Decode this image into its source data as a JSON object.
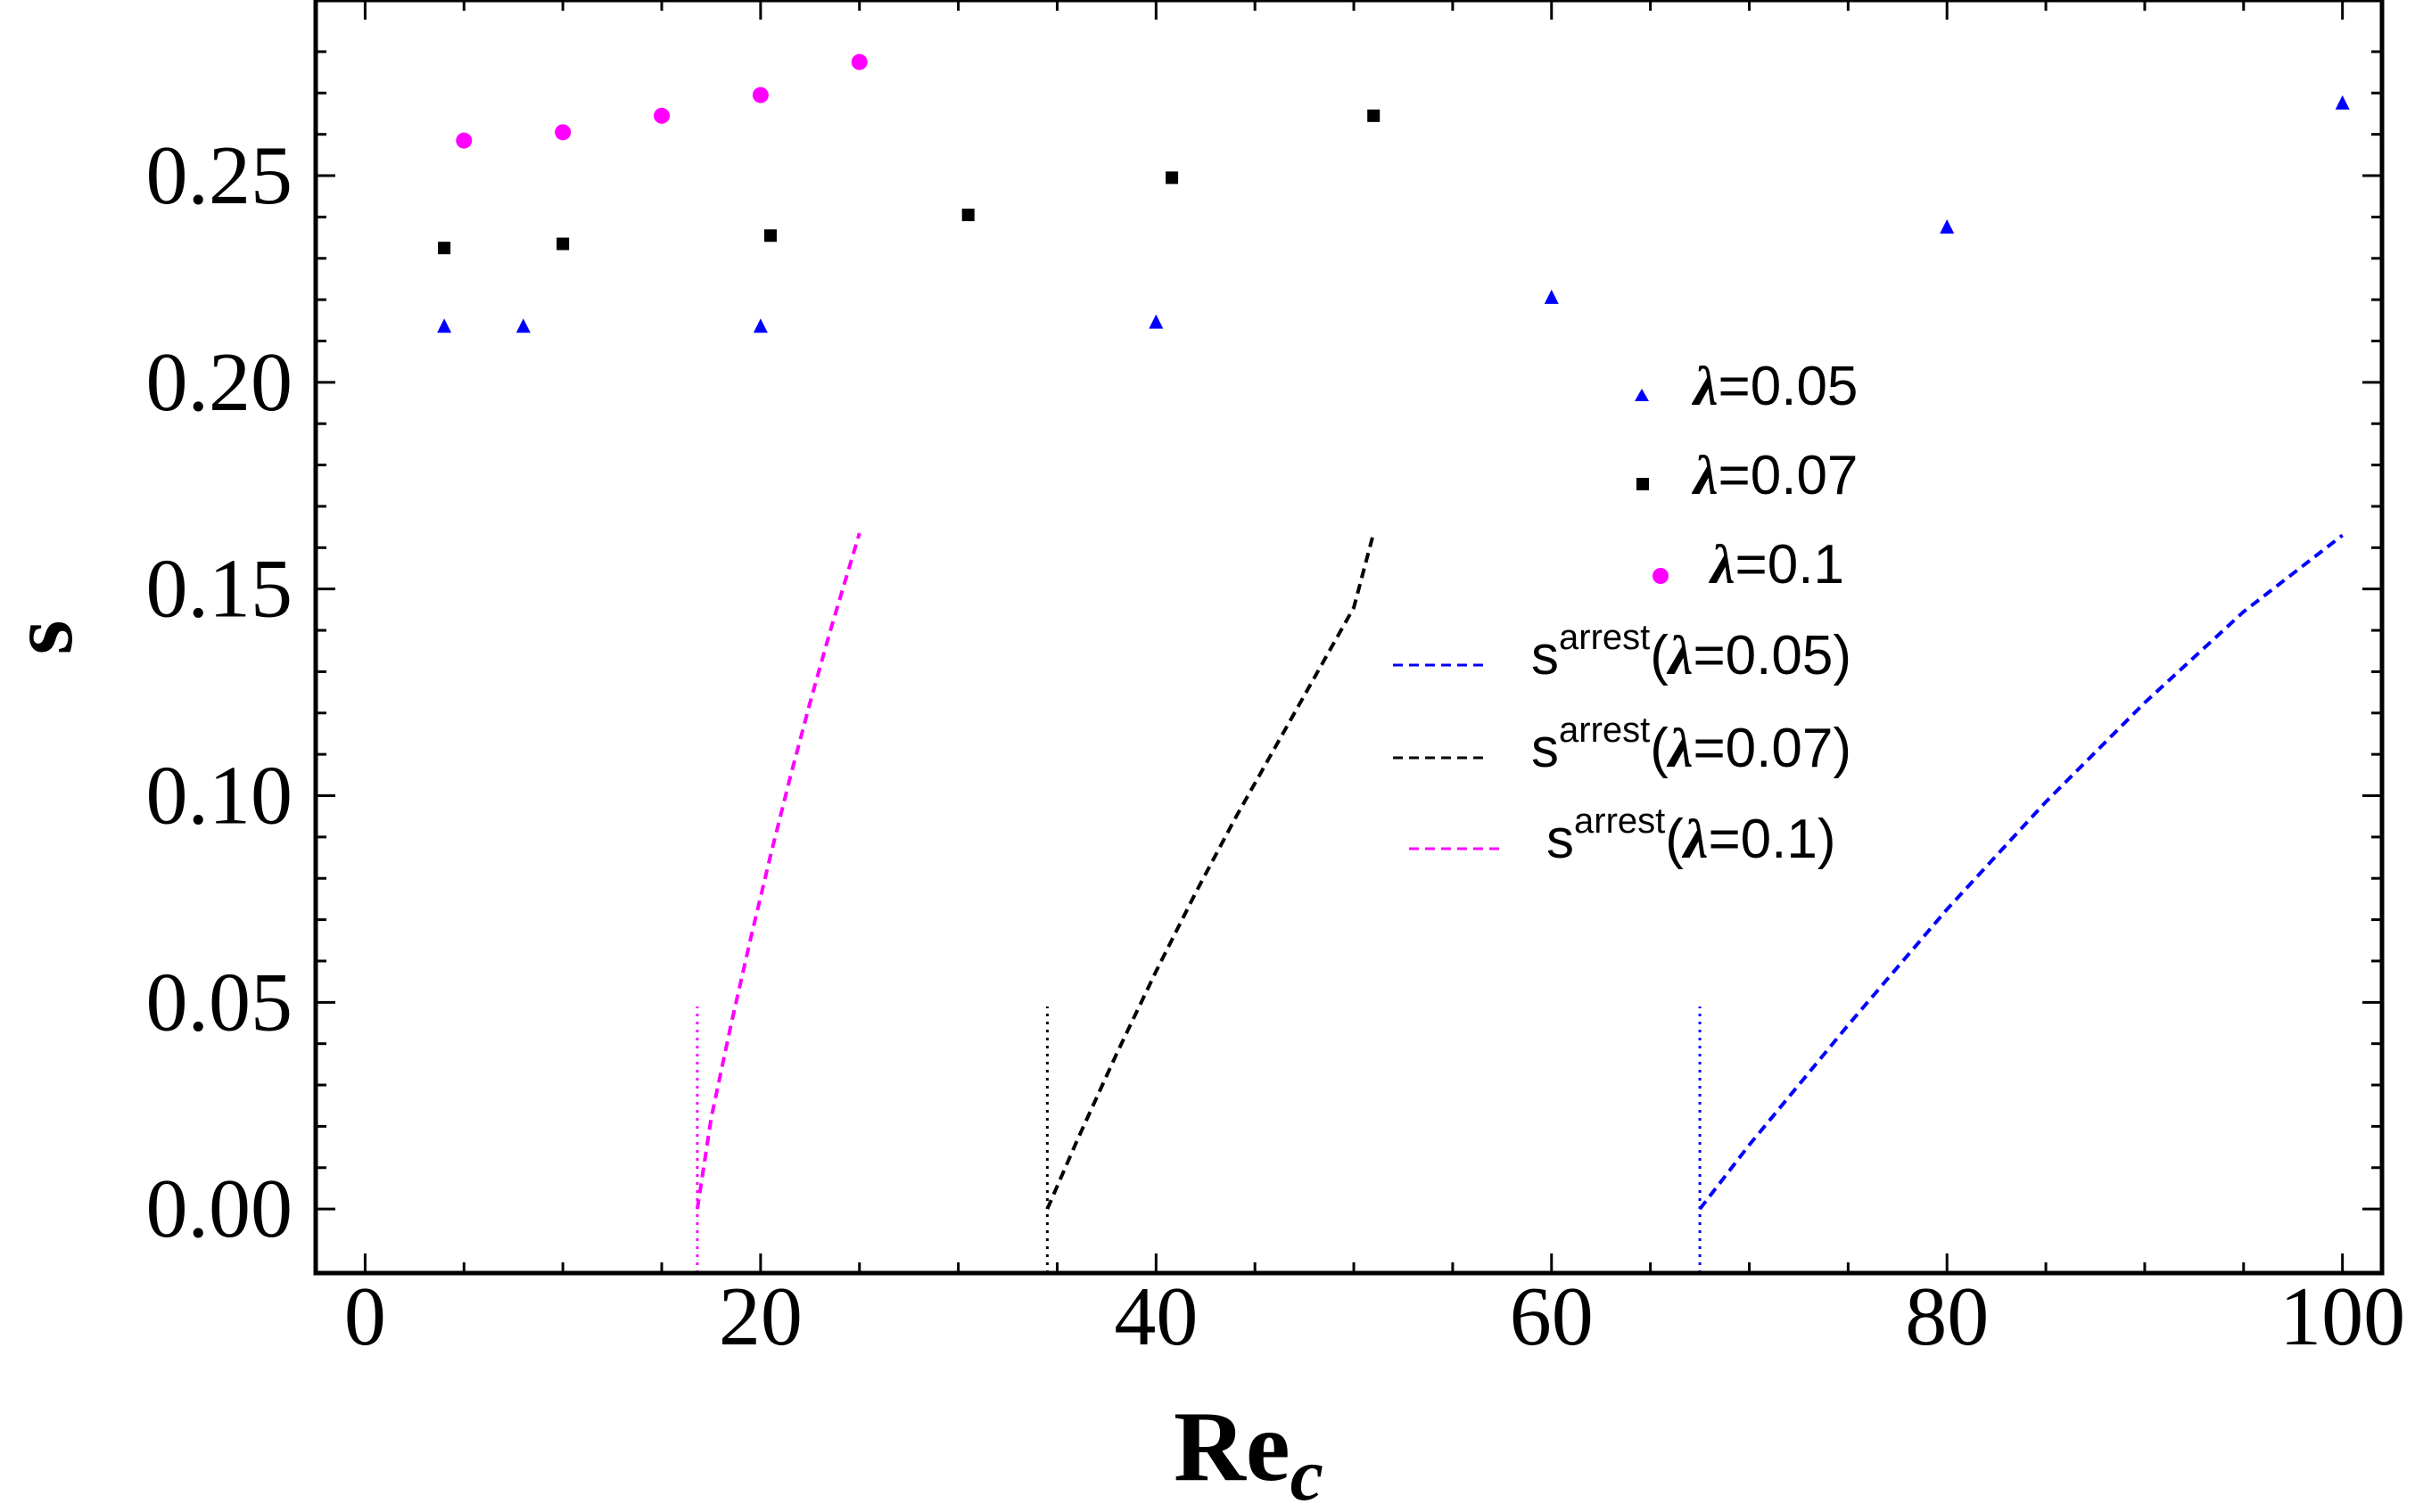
{
  "chart_data": {
    "type": "scatter",
    "title": "",
    "xlabel": "Re",
    "xlabel_subscript": "c",
    "ylabel": "s",
    "xlim": [
      -2.5,
      102
    ],
    "ylim": [
      -0.0155,
      0.2925
    ],
    "x_ticks": [
      0,
      20,
      40,
      60,
      80,
      100
    ],
    "x_tick_labels": [
      "0",
      "20",
      "40",
      "60",
      "80",
      "100"
    ],
    "y_ticks": [
      0.0,
      0.05,
      0.1,
      0.15,
      0.2,
      0.25
    ],
    "y_tick_labels": [
      "0.00",
      "0.05",
      "0.10",
      "0.15",
      "0.20",
      "0.25"
    ],
    "legend_position": "center-right",
    "series": [
      {
        "name": "λ=0.05",
        "lambda_symbol": "λ",
        "legend_value": "=0.05",
        "kind": "points",
        "marker": "triangle",
        "color": "#0000ff",
        "x": [
          4,
          8,
          20,
          40,
          60,
          80,
          100
        ],
        "y": [
          0.2135,
          0.2135,
          0.2135,
          0.2145,
          0.2205,
          0.2375,
          0.2675
        ]
      },
      {
        "name": "λ=0.07",
        "lambda_symbol": "λ",
        "legend_value": "=0.07",
        "kind": "points",
        "marker": "square",
        "color": "#000000",
        "x": [
          4,
          10,
          20.5,
          30.5,
          40.8,
          51
        ],
        "y": [
          0.2325,
          0.2335,
          0.2355,
          0.2405,
          0.2495,
          0.2645
        ]
      },
      {
        "name": "λ=0.1",
        "lambda_symbol": "λ",
        "legend_value": "=0.1",
        "kind": "points",
        "marker": "circle",
        "color": "#ff00ff",
        "x": [
          5,
          10,
          15,
          20,
          25
        ],
        "y": [
          0.2585,
          0.2605,
          0.2645,
          0.2695,
          0.2775
        ]
      },
      {
        "name": "s^arrest(λ=0.05)",
        "label_base": "s",
        "label_sup": "arrest",
        "label_open": "(",
        "lambda_symbol": "λ",
        "label_value": "=0.05)",
        "kind": "dashed-line",
        "color": "#0000ff",
        "x": [
          67.5,
          70,
          75,
          80,
          85,
          90,
          95,
          100
        ],
        "y": [
          0.0,
          0.0155,
          0.0445,
          0.0725,
          0.0985,
          0.1225,
          0.1445,
          0.163
        ]
      },
      {
        "name": "s^arrest(λ=0.07)",
        "label_base": "s",
        "label_sup": "arrest",
        "label_open": "(",
        "lambda_symbol": "λ",
        "label_value": "=0.07)",
        "kind": "dashed-line",
        "color": "#000000",
        "x": [
          34.5,
          36,
          38,
          40,
          42,
          44,
          46,
          48,
          50,
          51
        ],
        "y": [
          0.0,
          0.0165,
          0.0375,
          0.0575,
          0.0765,
          0.0945,
          0.1115,
          0.1285,
          0.1455,
          0.1635
        ]
      },
      {
        "name": "s^arrest(λ=0.1)",
        "label_base": "s",
        "label_sup": "arrest",
        "label_open": "(",
        "lambda_symbol": "λ",
        "label_value": "=0.1)",
        "kind": "dashed-line",
        "color": "#ff00ff",
        "x": [
          16.8,
          17.5,
          18.5,
          19.5,
          20.5,
          21.5,
          22.5,
          23.5,
          24.5,
          25
        ],
        "y": [
          0.0,
          0.022,
          0.0445,
          0.0655,
          0.0855,
          0.1045,
          0.1225,
          0.1395,
          0.1555,
          0.1635
        ]
      }
    ],
    "reference_lines": [
      {
        "x": 16.8,
        "y0": -0.0155,
        "y1": 0.049,
        "style": "dotted",
        "color": "#ff00ff"
      },
      {
        "x": 34.5,
        "y0": -0.0155,
        "y1": 0.049,
        "style": "dotted",
        "color": "#000000"
      },
      {
        "x": 67.5,
        "y0": -0.0155,
        "y1": 0.049,
        "style": "dotted",
        "color": "#0000ff"
      }
    ]
  }
}
